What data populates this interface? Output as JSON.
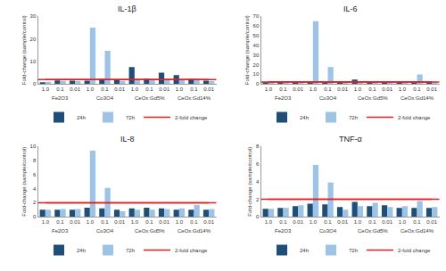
{
  "chart_data": [
    {
      "type": "bar",
      "title": "IL-1β",
      "y_label": "Fold-change (sample/control)",
      "categories": [
        "1.0",
        "0.1",
        "0.01",
        "1.0",
        "0.1",
        "0.01",
        "1.0",
        "0.1",
        "0.01",
        "1.0",
        "0.1",
        "0.01"
      ],
      "category_groups": [
        "Fe2O3",
        "Fe2O3",
        "Fe2O3",
        "Co3O4",
        "Co3O4",
        "Co3O4",
        "CeOx:Gd5%",
        "CeOx:Gd5%",
        "CeOx:Gd5%",
        "CeOx:Gd14%",
        "CeOx:Gd14%",
        "CeOx:Gd14%"
      ],
      "series": [
        {
          "name": "24h",
          "color": "#1f4e79",
          "values": [
            0.8,
            1.6,
            1.5,
            1.5,
            2.3,
            2.0,
            7.5,
            2.4,
            5.0,
            3.9,
            2.3,
            1.5
          ]
        },
        {
          "name": "72h",
          "color": "#9dc3e6",
          "values": [
            1.0,
            1.4,
            1.3,
            25,
            14.7,
            1.4,
            2.3,
            1.9,
            2.3,
            1.7,
            2.4,
            1.3
          ]
        }
      ],
      "reference_line": {
        "name": "2-fold change",
        "value": 2,
        "color": "#e02020"
      },
      "ylim": [
        0,
        30
      ],
      "yticks": [
        0,
        10,
        20,
        30
      ],
      "grid": false,
      "legend": "bottom"
    },
    {
      "type": "bar",
      "title": "IL-6",
      "y_label": "Fold-change (sample/control)",
      "categories": [
        "1.0",
        "0.1",
        "0.01",
        "1.0",
        "0.1",
        "0.01",
        "1.0",
        "0.1",
        "0.01",
        "1.0",
        "0.1",
        "0.01"
      ],
      "category_groups": [
        "Fe2O3",
        "Fe2O3",
        "Fe2O3",
        "Co3O4",
        "Co3O4",
        "Co3O4",
        "CeOx:Gd5%",
        "CeOx:Gd5%",
        "CeOx:Gd5%",
        "CeOx:Gd14%",
        "CeOx:Gd14%",
        "CeOx:Gd14%"
      ],
      "series": [
        {
          "name": "24h",
          "color": "#1f4e79",
          "values": [
            1.5,
            1.2,
            1.0,
            1.5,
            1.8,
            1.2,
            4.5,
            1.5,
            1.6,
            1.3,
            1.2,
            1.5
          ]
        },
        {
          "name": "72h",
          "color": "#9dc3e6",
          "values": [
            1.6,
            1.4,
            1.2,
            65,
            17.5,
            1.6,
            1.8,
            2.2,
            1.6,
            1.6,
            10,
            1.5
          ]
        }
      ],
      "reference_line": {
        "name": "2-fold change",
        "value": 2,
        "color": "#e02020"
      },
      "ylim": [
        0,
        70
      ],
      "yticks": [
        0,
        10,
        20,
        30,
        40,
        50,
        60,
        70
      ],
      "grid": false,
      "legend": "bottom"
    },
    {
      "type": "bar",
      "title": "IL-8",
      "y_label": "Fold-change (sample/control)",
      "categories": [
        "1.0",
        "0.1",
        "0.01",
        "1.0",
        "0.1",
        "0.01",
        "1.0",
        "0.1",
        "0.01",
        "1.0",
        "0.1",
        "0.01"
      ],
      "category_groups": [
        "Fe2O3",
        "Fe2O3",
        "Fe2O3",
        "Co3O4",
        "Co3O4",
        "Co3O4",
        "CeOx:Gd5%",
        "CeOx:Gd5%",
        "CeOx:Gd5%",
        "CeOx:Gd14%",
        "CeOx:Gd14%",
        "CeOx:Gd14%"
      ],
      "series": [
        {
          "name": "24h",
          "color": "#1f4e79",
          "values": [
            1.0,
            1.0,
            1.0,
            1.3,
            1.2,
            1.0,
            1.2,
            1.3,
            1.2,
            1.0,
            1.0,
            1.0
          ]
        },
        {
          "name": "72h",
          "color": "#9dc3e6",
          "values": [
            1.0,
            1.1,
            1.1,
            9.4,
            4.1,
            0.8,
            1.0,
            1.0,
            1.1,
            1.2,
            1.7,
            1.1
          ]
        }
      ],
      "reference_line": {
        "name": "2-fold change",
        "value": 2,
        "color": "#e02020"
      },
      "ylim": [
        0,
        10
      ],
      "yticks": [
        0,
        2,
        4,
        6,
        8,
        10
      ],
      "grid": false,
      "legend": "bottom"
    },
    {
      "type": "bar",
      "title": "TNF-α",
      "y_label": "Fold-change (sample/control)",
      "categories": [
        "1.0",
        "0.1",
        "0.01",
        "1.0",
        "0.1",
        "0.01",
        "1.0",
        "0.1",
        "0.01",
        "1.0",
        "0.1",
        "0.01"
      ],
      "category_groups": [
        "Fe2O3",
        "Fe2O3",
        "Fe2O3",
        "Co3O4",
        "Co3O4",
        "Co3O4",
        "CeOx:Gd5%",
        "CeOx:Gd5%",
        "CeOx:Gd5%",
        "CeOx:Gd14%",
        "CeOx:Gd14%",
        "CeOx:Gd14%"
      ],
      "series": [
        {
          "name": "24h",
          "color": "#1f4e79",
          "values": [
            0.9,
            1.0,
            1.2,
            1.5,
            1.4,
            1.1,
            1.7,
            1.2,
            1.3,
            1.0,
            1.0,
            1.0
          ]
        },
        {
          "name": "72h",
          "color": "#9dc3e6",
          "values": [
            0.9,
            1.0,
            1.3,
            5.9,
            3.9,
            0.8,
            1.2,
            1.6,
            1.1,
            1.2,
            1.8,
            1.1
          ]
        }
      ],
      "reference_line": {
        "name": "2-fold change",
        "value": 2,
        "color": "#e02020"
      },
      "ylim": [
        0,
        8
      ],
      "yticks": [
        0,
        2,
        4,
        6,
        8
      ],
      "grid": false,
      "legend": "bottom"
    }
  ]
}
